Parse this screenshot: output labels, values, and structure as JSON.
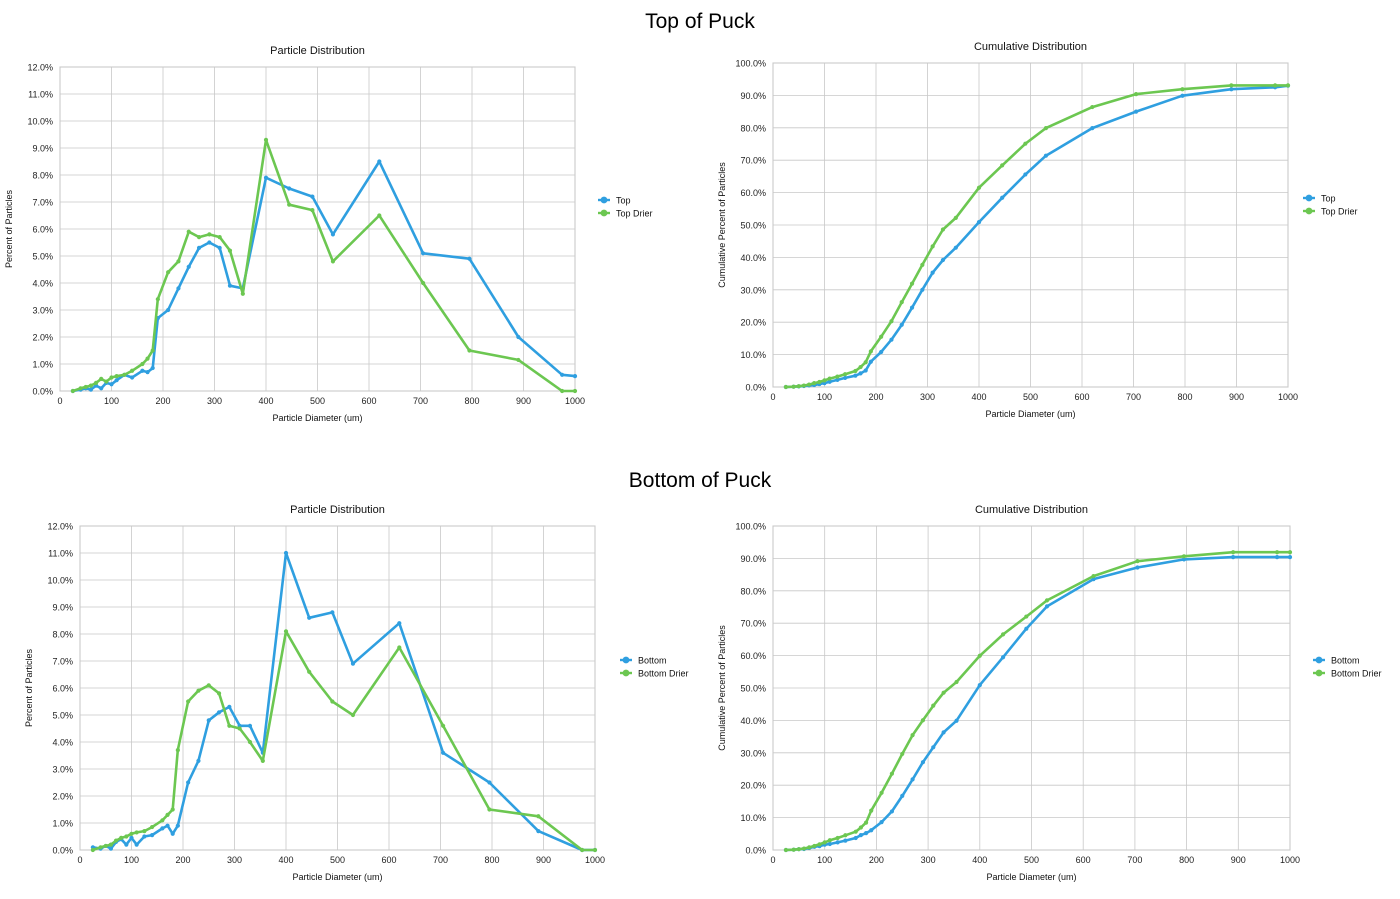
{
  "sections": {
    "top_title": "Top of Puck",
    "bottom_title": "Bottom of Puck"
  },
  "colors": {
    "blue": "#2f9fe0",
    "green": "#6cc751",
    "grid": "#c8c8c8"
  },
  "chart_data": [
    {
      "id": "top-dist",
      "type": "line",
      "title": "Particle Distribution",
      "xlabel": "Particle Diameter (um)",
      "ylabel": "Percent of Particles",
      "xlim": [
        0,
        1000
      ],
      "ylim": [
        0,
        12
      ],
      "xticks": [
        0,
        100,
        200,
        300,
        400,
        500,
        600,
        700,
        800,
        900,
        1000
      ],
      "xtick_labels": [
        "0",
        "100",
        "200",
        "300",
        "400",
        "500",
        "600",
        "700",
        "800",
        "900",
        "1000"
      ],
      "yticks": [
        0,
        1,
        2,
        3,
        4,
        5,
        6,
        7,
        8,
        9,
        10,
        11,
        12
      ],
      "ytick_labels": [
        "0.0%",
        "1.0%",
        "2.0%",
        "3.0%",
        "4.0%",
        "5.0%",
        "6.0%",
        "7.0%",
        "8.0%",
        "9.0%",
        "10.0%",
        "11.0%",
        "12.0%"
      ],
      "grid": true,
      "legend_position": "right",
      "series": [
        {
          "name": "Top",
          "color": "blue",
          "x": [
            25,
            40,
            50,
            60,
            70,
            80,
            90,
            100,
            110,
            125,
            140,
            160,
            170,
            180,
            190,
            210,
            230,
            250,
            270,
            290,
            310,
            330,
            355,
            400,
            445,
            490,
            530,
            620,
            705,
            795,
            890,
            975,
            1000
          ],
          "y": [
            0,
            0.05,
            0.1,
            0.05,
            0.2,
            0.1,
            0.3,
            0.25,
            0.4,
            0.6,
            0.5,
            0.75,
            0.7,
            0.85,
            2.7,
            3,
            3.8,
            4.6,
            5.3,
            5.5,
            5.3,
            3.9,
            3.8,
            7.9,
            7.5,
            7.2,
            5.8,
            8.5,
            5.1,
            4.9,
            2.0,
            0.6,
            0.55
          ]
        },
        {
          "name": "Top Drier",
          "color": "green",
          "x": [
            25,
            40,
            50,
            60,
            70,
            80,
            90,
            100,
            110,
            125,
            140,
            160,
            170,
            180,
            190,
            210,
            230,
            250,
            270,
            290,
            310,
            330,
            355,
            400,
            445,
            490,
            530,
            620,
            705,
            795,
            890,
            975,
            1000
          ],
          "y": [
            0,
            0.1,
            0.15,
            0.2,
            0.3,
            0.45,
            0.35,
            0.5,
            0.55,
            0.6,
            0.75,
            1.0,
            1.2,
            1.5,
            3.4,
            4.4,
            4.8,
            5.9,
            5.7,
            5.8,
            5.7,
            5.2,
            3.6,
            9.3,
            6.9,
            6.7,
            4.8,
            6.5,
            4.0,
            1.5,
            1.15,
            0,
            0
          ]
        }
      ]
    },
    {
      "id": "top-cum",
      "type": "line",
      "title": "Cumulative Distribution",
      "xlabel": "Particle Diameter (um)",
      "ylabel": "Cumulative Percent of Particles",
      "xlim": [
        0,
        1000
      ],
      "ylim": [
        0,
        100
      ],
      "xticks": [
        0,
        100,
        200,
        300,
        400,
        500,
        600,
        700,
        800,
        900,
        1000
      ],
      "xtick_labels": [
        "0",
        "100",
        "200",
        "300",
        "400",
        "500",
        "600",
        "700",
        "800",
        "900",
        "1000"
      ],
      "yticks": [
        0,
        10,
        20,
        30,
        40,
        50,
        60,
        70,
        80,
        90,
        100
      ],
      "ytick_labels": [
        "0.0%",
        "10.0%",
        "20.0%",
        "30.0%",
        "40.0%",
        "50.0%",
        "60.0%",
        "70.0%",
        "80.0%",
        "90.0%",
        "100.0%"
      ],
      "grid": true,
      "legend_position": "right",
      "series": [
        {
          "name": "Top",
          "color": "blue",
          "x": [
            25,
            40,
            50,
            60,
            70,
            80,
            90,
            100,
            110,
            125,
            140,
            160,
            170,
            180,
            190,
            210,
            230,
            250,
            270,
            290,
            310,
            330,
            355,
            400,
            445,
            490,
            530,
            620,
            705,
            795,
            890,
            975,
            1000
          ],
          "y": [
            0,
            0.1,
            0.2,
            0.3,
            0.5,
            0.6,
            0.9,
            1.2,
            1.6,
            2.2,
            2.8,
            3.5,
            4.2,
            5.1,
            7.8,
            10.8,
            14.6,
            19.2,
            24.5,
            30,
            35.3,
            39.2,
            43,
            50.9,
            58.4,
            65.6,
            71.4,
            79.9,
            85,
            89.9,
            91.9,
            92.5,
            93
          ]
        },
        {
          "name": "Top Drier",
          "color": "green",
          "x": [
            25,
            40,
            50,
            60,
            70,
            80,
            90,
            100,
            110,
            125,
            140,
            160,
            170,
            180,
            190,
            210,
            230,
            250,
            270,
            290,
            310,
            330,
            355,
            400,
            445,
            490,
            530,
            620,
            705,
            795,
            890,
            975,
            1000
          ],
          "y": [
            0,
            0.1,
            0.25,
            0.45,
            0.75,
            1.2,
            1.55,
            2.05,
            2.6,
            3.2,
            3.95,
            4.95,
            6.15,
            7.65,
            11,
            15.5,
            20.3,
            26.2,
            31.9,
            37.7,
            43.4,
            48.6,
            52.2,
            61.5,
            68.4,
            75.1,
            79.9,
            86.4,
            90.4,
            91.9,
            93.1,
            93.1,
            93.1
          ]
        }
      ]
    },
    {
      "id": "bottom-dist",
      "type": "line",
      "title": "Particle Distribution",
      "xlabel": "Particle Diameter (um)",
      "ylabel": "Percent of Particles",
      "xlim": [
        0,
        1000
      ],
      "ylim": [
        0,
        12
      ],
      "xticks": [
        0,
        100,
        200,
        300,
        400,
        500,
        600,
        700,
        800,
        900,
        1000
      ],
      "xtick_labels": [
        "0",
        "100",
        "200",
        "300",
        "400",
        "500",
        "600",
        "700",
        "800",
        "900",
        "1000"
      ],
      "yticks": [
        0,
        1,
        2,
        3,
        4,
        5,
        6,
        7,
        8,
        9,
        10,
        11,
        12
      ],
      "ytick_labels": [
        "0.0%",
        "1.0%",
        "2.0%",
        "3.0%",
        "4.0%",
        "5.0%",
        "6.0%",
        "7.0%",
        "8.0%",
        "9.0%",
        "10.0%",
        "11.0%",
        "12.0%"
      ],
      "grid": true,
      "legend_position": "right",
      "series": [
        {
          "name": "Bottom",
          "color": "blue",
          "x": [
            25,
            40,
            50,
            60,
            70,
            80,
            90,
            100,
            110,
            125,
            140,
            160,
            170,
            180,
            190,
            210,
            230,
            250,
            270,
            290,
            310,
            330,
            355,
            400,
            445,
            490,
            530,
            620,
            705,
            795,
            890,
            975,
            1000
          ],
          "y": [
            0.1,
            0.05,
            0.15,
            0.05,
            0.3,
            0.4,
            0.2,
            0.45,
            0.2,
            0.5,
            0.55,
            0.8,
            0.9,
            0.6,
            0.9,
            2.5,
            3.3,
            4.8,
            5.1,
            5.3,
            4.6,
            4.6,
            3.6,
            11.0,
            8.6,
            8.8,
            6.9,
            8.4,
            3.6,
            2.5,
            0.7,
            0,
            0
          ]
        },
        {
          "name": "Bottom Drier",
          "color": "green",
          "x": [
            25,
            40,
            50,
            60,
            70,
            80,
            90,
            100,
            110,
            125,
            140,
            160,
            170,
            180,
            190,
            210,
            230,
            250,
            270,
            290,
            310,
            330,
            355,
            400,
            445,
            490,
            530,
            620,
            705,
            795,
            890,
            975,
            1000
          ],
          "y": [
            0,
            0.1,
            0.15,
            0.2,
            0.35,
            0.45,
            0.5,
            0.6,
            0.65,
            0.7,
            0.85,
            1.1,
            1.3,
            1.5,
            3.7,
            5.5,
            5.9,
            6.1,
            5.8,
            4.6,
            4.5,
            4.0,
            3.3,
            8.1,
            6.6,
            5.5,
            5.0,
            7.5,
            4.6,
            1.5,
            1.25,
            0,
            0
          ]
        }
      ]
    },
    {
      "id": "bottom-cum",
      "type": "line",
      "title": "Cumulative Distribution",
      "xlabel": "Particle Diameter (um)",
      "ylabel": "Cumulative Percent of Particles",
      "xlim": [
        0,
        1000
      ],
      "ylim": [
        0,
        100
      ],
      "xticks": [
        0,
        100,
        200,
        300,
        400,
        500,
        600,
        700,
        800,
        900,
        1000
      ],
      "xtick_labels": [
        "0",
        "100",
        "200",
        "300",
        "400",
        "500",
        "600",
        "700",
        "800",
        "900",
        "1000"
      ],
      "yticks": [
        0,
        10,
        20,
        30,
        40,
        50,
        60,
        70,
        80,
        90,
        100
      ],
      "ytick_labels": [
        "0.0%",
        "10.0%",
        "20.0%",
        "30.0%",
        "40.0%",
        "50.0%",
        "60.0%",
        "70.0%",
        "80.0%",
        "90.0%",
        "100.0%"
      ],
      "grid": true,
      "legend_position": "right",
      "series": [
        {
          "name": "Bottom",
          "color": "blue",
          "x": [
            25,
            40,
            50,
            60,
            70,
            80,
            90,
            100,
            110,
            125,
            140,
            160,
            170,
            180,
            190,
            210,
            230,
            250,
            270,
            290,
            310,
            330,
            355,
            400,
            445,
            490,
            530,
            620,
            705,
            795,
            890,
            975,
            1000
          ],
          "y": [
            0,
            0.1,
            0.25,
            0.3,
            0.6,
            1.0,
            1.2,
            1.65,
            1.85,
            2.35,
            2.9,
            3.7,
            4.6,
            5.2,
            6.1,
            8.6,
            11.9,
            16.7,
            21.8,
            27.1,
            31.7,
            36.3,
            39.9,
            50.9,
            59.5,
            68.3,
            75.2,
            83.6,
            87.2,
            89.7,
            90.4,
            90.4,
            90.4
          ]
        },
        {
          "name": "Bottom Drier",
          "color": "green",
          "x": [
            25,
            40,
            50,
            60,
            70,
            80,
            90,
            100,
            110,
            125,
            140,
            160,
            170,
            180,
            190,
            210,
            230,
            250,
            270,
            290,
            310,
            330,
            355,
            400,
            445,
            490,
            530,
            620,
            705,
            795,
            890,
            975,
            1000
          ],
          "y": [
            0,
            0.1,
            0.25,
            0.45,
            0.8,
            1.25,
            1.75,
            2.35,
            3.0,
            3.7,
            4.55,
            5.65,
            6.95,
            8.45,
            12.15,
            17.65,
            23.55,
            29.65,
            35.45,
            40.05,
            44.55,
            48.55,
            51.85,
            59.95,
            66.55,
            72.05,
            77.05,
            84.55,
            89.15,
            90.65,
            91.9,
            91.9,
            91.9
          ]
        }
      ]
    }
  ]
}
